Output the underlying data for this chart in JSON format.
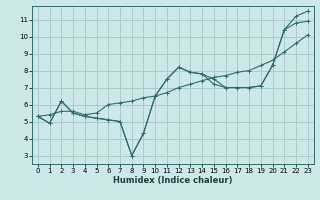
{
  "xlabel": "Humidex (Indice chaleur)",
  "bg_color": "#cce8e8",
  "grid_color": "#aacccc",
  "line_color": "#2e6b6b",
  "xlim": [
    -0.5,
    23.5
  ],
  "ylim": [
    2.5,
    11.8
  ],
  "xticks": [
    0,
    1,
    2,
    3,
    4,
    5,
    6,
    7,
    8,
    9,
    10,
    11,
    12,
    13,
    14,
    15,
    16,
    17,
    18,
    19,
    20,
    21,
    22,
    23
  ],
  "yticks": [
    3,
    4,
    5,
    6,
    7,
    8,
    9,
    10,
    11
  ],
  "series": [
    [
      5.3,
      4.9,
      6.2,
      5.5,
      5.3,
      5.2,
      5.1,
      5.0,
      3.0,
      4.3,
      6.5,
      7.5,
      8.2,
      7.9,
      7.8,
      7.5,
      7.0,
      7.0,
      7.0,
      7.1,
      8.3,
      10.4,
      10.8,
      10.9
    ],
    [
      5.3,
      4.9,
      6.2,
      5.5,
      5.3,
      5.2,
      5.1,
      5.0,
      3.0,
      4.3,
      6.5,
      7.5,
      8.2,
      7.9,
      7.8,
      7.2,
      7.0,
      7.0,
      7.0,
      7.1,
      8.3,
      10.4,
      11.2,
      11.5
    ],
    [
      5.3,
      5.4,
      5.6,
      5.6,
      5.4,
      5.5,
      6.0,
      6.1,
      6.2,
      6.4,
      6.5,
      6.7,
      7.0,
      7.2,
      7.4,
      7.6,
      7.7,
      7.9,
      8.0,
      8.3,
      8.6,
      9.1,
      9.6,
      10.1
    ]
  ]
}
